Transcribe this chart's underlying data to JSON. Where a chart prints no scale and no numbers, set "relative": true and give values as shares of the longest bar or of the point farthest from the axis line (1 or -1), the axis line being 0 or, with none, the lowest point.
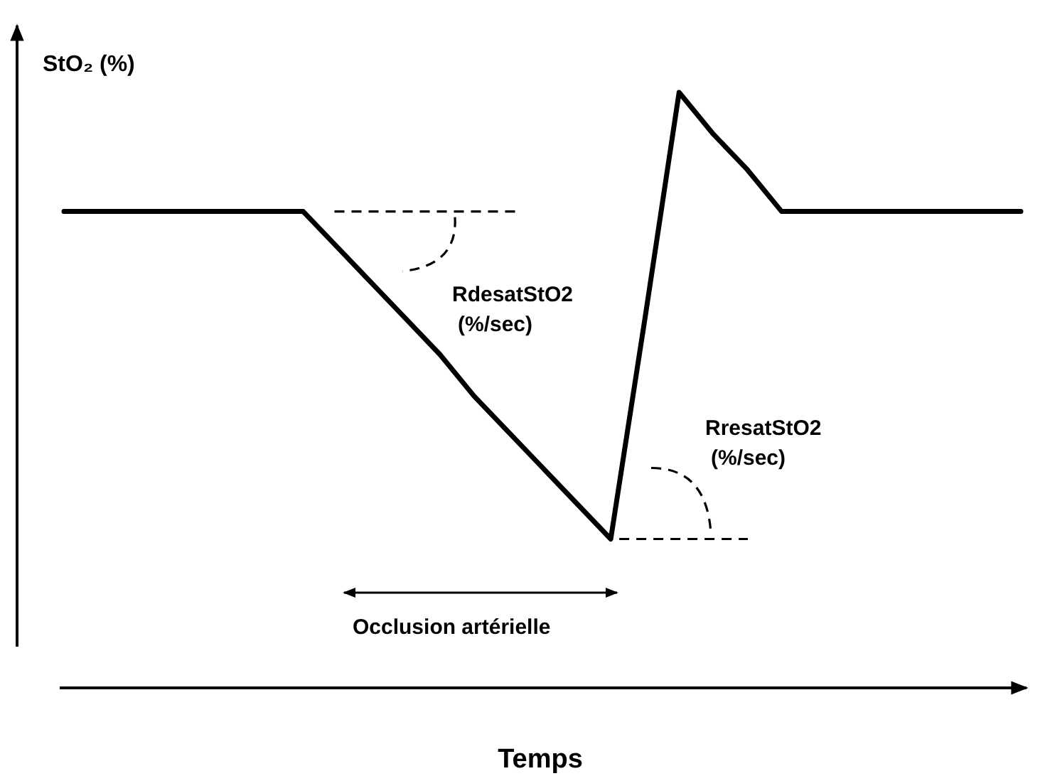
{
  "chart_data": {
    "type": "line",
    "relative": true,
    "ylabel": "StO₂ (%)",
    "xlabel": "Temps",
    "color": "#000000",
    "categories": [
      null,
      null,
      null,
      null,
      null,
      null,
      null,
      null,
      null,
      null,
      null,
      null,
      null,
      null,
      null,
      null,
      null,
      null,
      null,
      null,
      null,
      null,
      null,
      null,
      null,
      null,
      null,
      null,
      null
    ],
    "values": [
      0.8,
      0.8,
      0.8,
      0.8,
      0.8,
      0.8,
      0.8,
      0.8,
      0.74,
      0.68,
      0.62,
      0.56,
      0.49,
      0.43,
      0.37,
      0.31,
      0.25,
      0.62,
      1,
      0.93,
      0.87,
      0.8,
      0.8,
      0.8,
      0.8,
      0.8,
      0.8,
      0.8,
      0.8
    ],
    "annotations": [
      "RdesatStO2 (%/sec)",
      "RresatStO2 (%/sec)",
      "Occlusion artérielle"
    ]
  }
}
